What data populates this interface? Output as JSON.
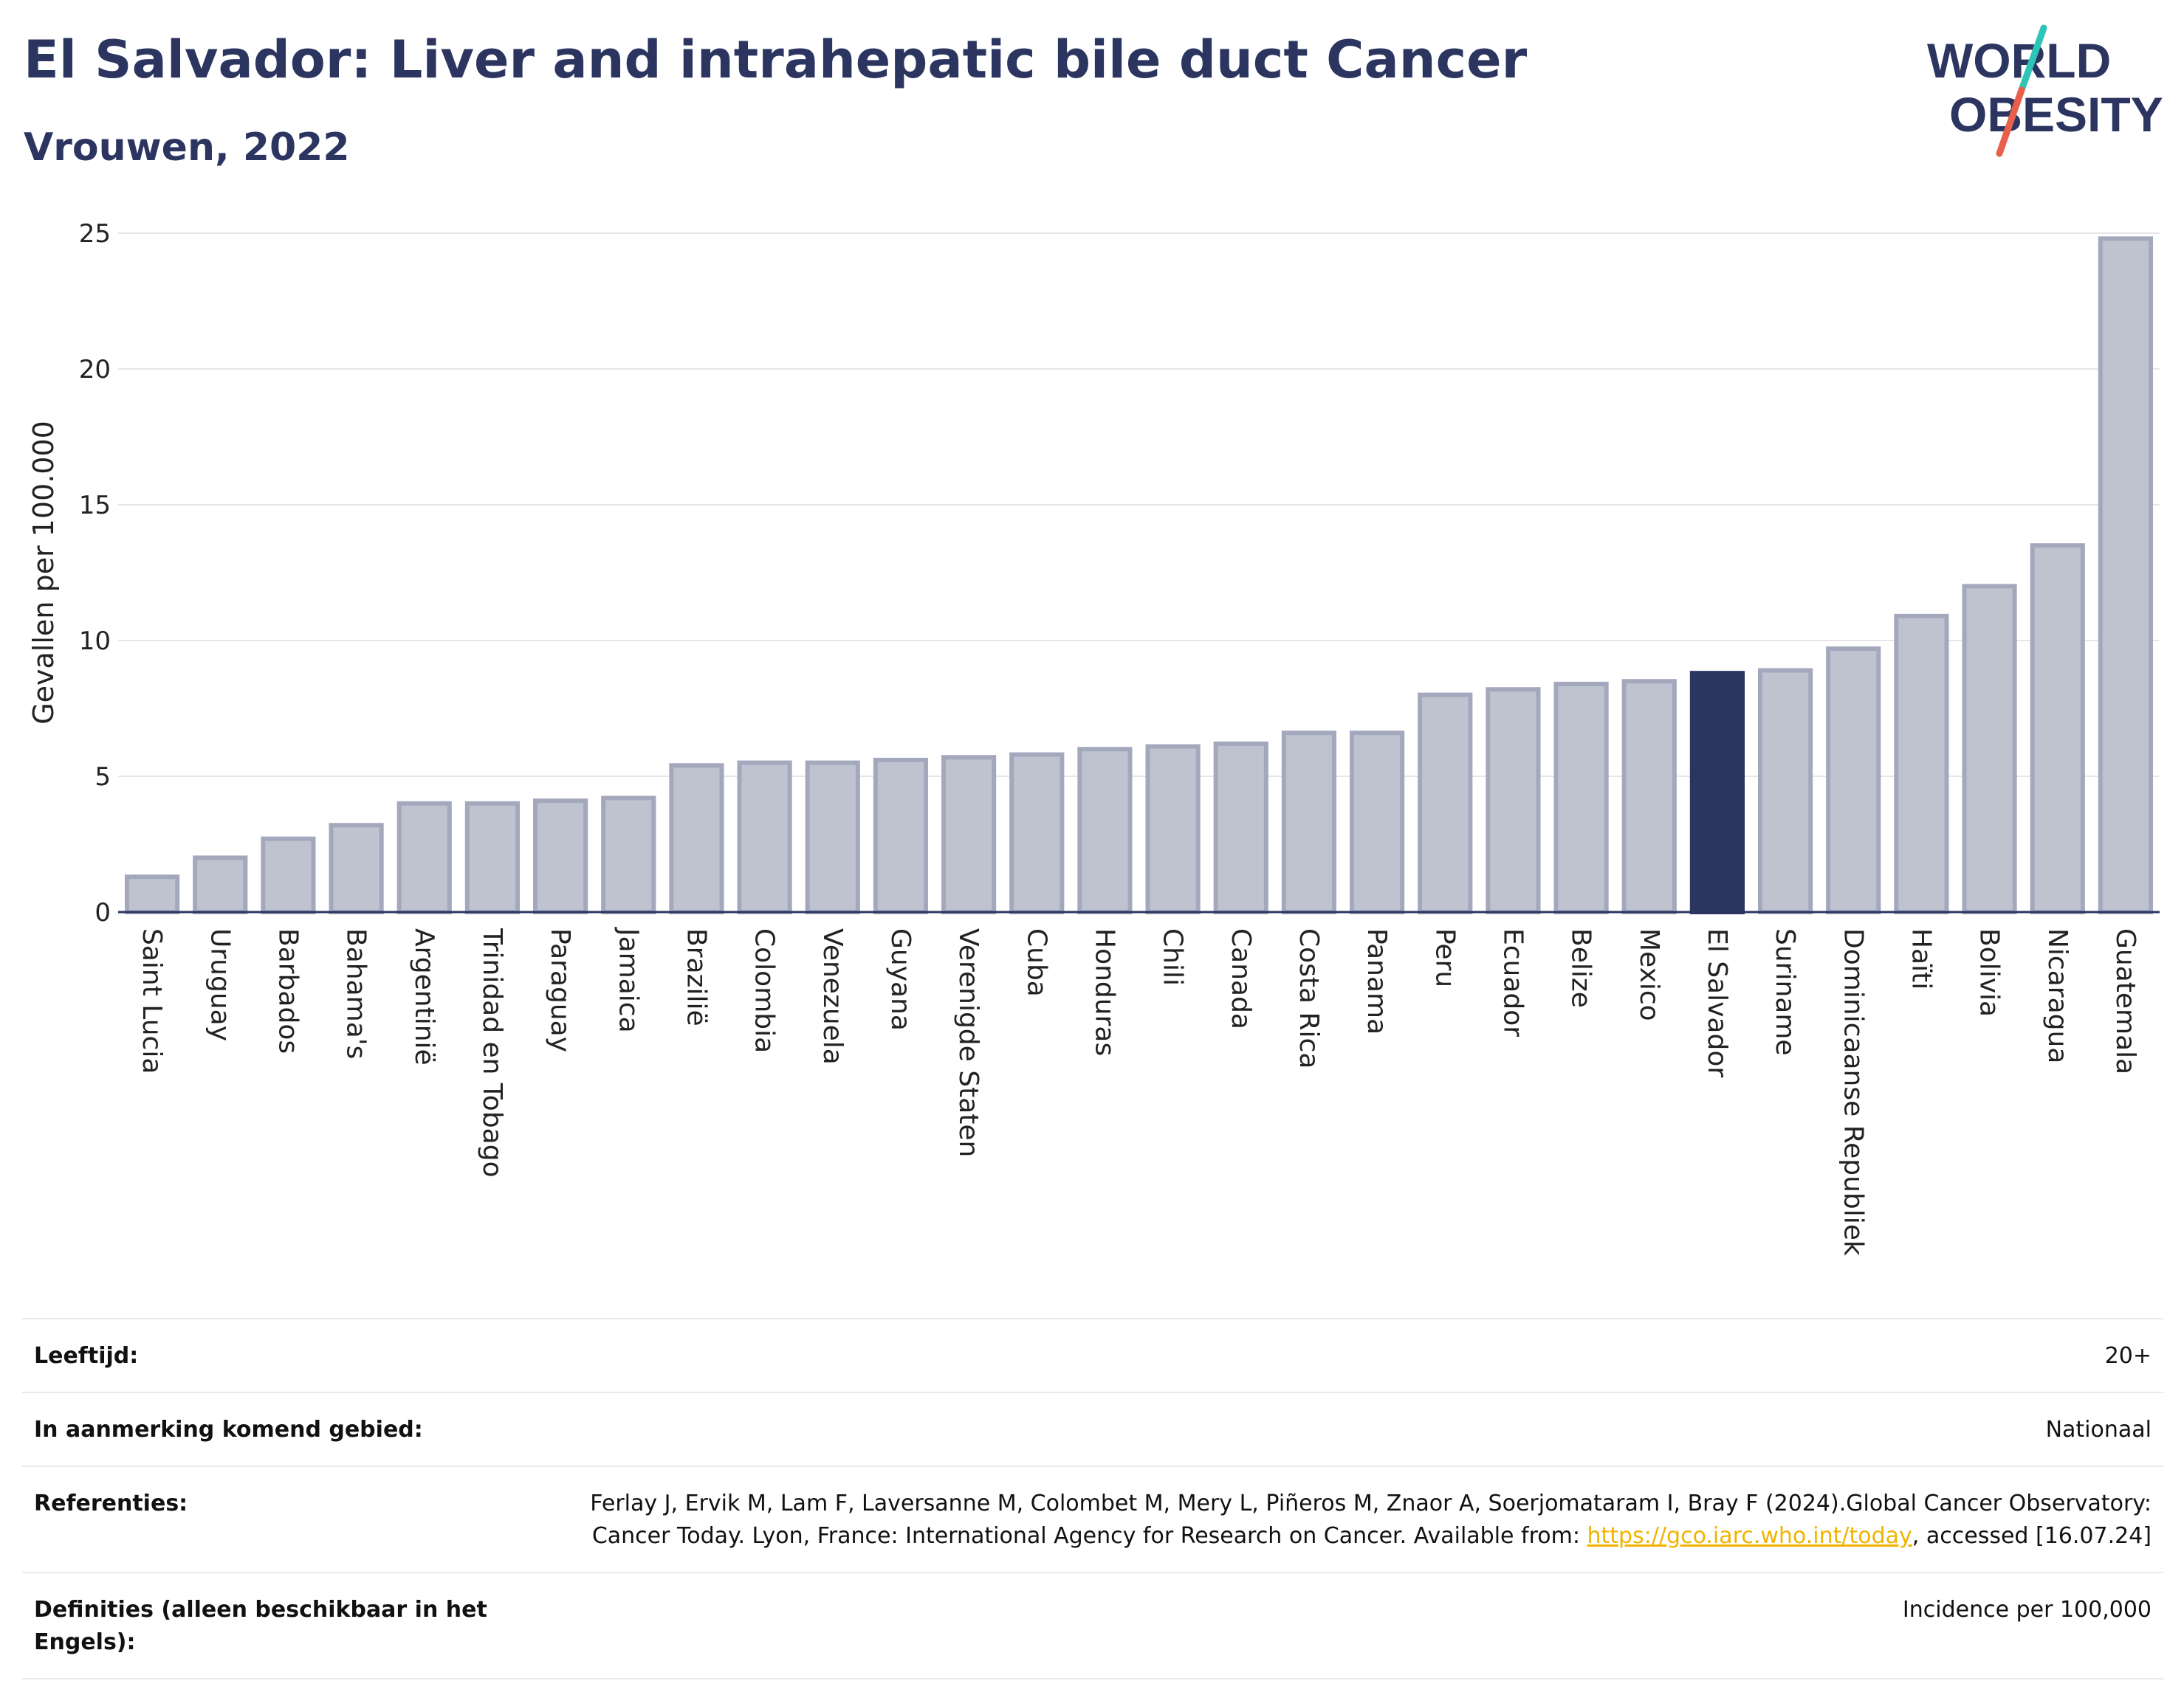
{
  "title": "El Salvador: Liver and intrahepatic bile duct Cancer",
  "subtitle": "Vrouwen, 2022",
  "logo": {
    "line1": "WORLD",
    "line2": "OBESITY",
    "accent_colors": [
      "#2ec4b6",
      "#e8604c"
    ]
  },
  "chart_data": {
    "type": "bar",
    "ylabel": "Gevallen per 100.000",
    "ylim": [
      0,
      25
    ],
    "yticks": [
      0,
      5,
      10,
      15,
      20,
      25
    ],
    "grid": true,
    "highlight": "El Salvador",
    "colors": {
      "bar": "#bfc3cf",
      "bar_border": "#a3a8bd",
      "highlight": "#2b3560"
    },
    "categories": [
      "Saint Lucia",
      "Uruguay",
      "Barbados",
      "Bahama's",
      "Argentinië",
      "Trinidad en Tobago",
      "Paraguay",
      "Jamaica",
      "Brazilië",
      "Colombia",
      "Venezuela",
      "Guyana",
      "Verenigde Staten",
      "Cuba",
      "Honduras",
      "Chili",
      "Canada",
      "Costa Rica",
      "Panama",
      "Peru",
      "Ecuador",
      "Belize",
      "Mexico",
      "El Salvador",
      "Suriname",
      "Dominicaanse Republiek",
      "Haïti",
      "Bolivia",
      "Nicaragua",
      "Guatemala"
    ],
    "values": [
      1.3,
      2.0,
      2.7,
      3.2,
      4.0,
      4.0,
      4.1,
      4.2,
      5.4,
      5.5,
      5.5,
      5.6,
      5.7,
      5.8,
      6.0,
      6.1,
      6.2,
      6.6,
      6.6,
      8.0,
      8.2,
      8.4,
      8.5,
      8.8,
      8.9,
      9.7,
      10.9,
      12.0,
      13.5,
      24.8
    ]
  },
  "info": [
    {
      "label": "Leeftijd:",
      "value": "20+"
    },
    {
      "label": "In aanmerking komend gebied:",
      "value": "Nationaal"
    },
    {
      "label": "Referenties:",
      "value": "Ferlay J, Ervik M, Lam F, Laversanne M, Colombet M, Mery L, Piñeros M, Znaor A, Soerjomataram I, Bray F (2024).Global Cancer Observatory: Cancer Today. Lyon, France: International Agency for Research on Cancer. Available from: ",
      "link": "https://gco.iarc.who.int/today",
      "suffix": ", accessed [16.07.24]"
    },
    {
      "label": "Definities (alleen beschikbaar in het Engels):",
      "value": "Incidence per 100,000"
    }
  ]
}
